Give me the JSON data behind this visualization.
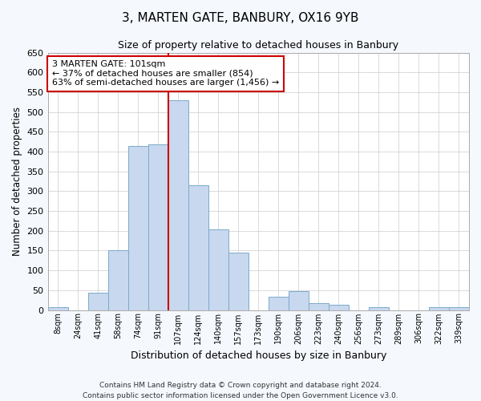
{
  "title": "3, MARTEN GATE, BANBURY, OX16 9YB",
  "subtitle": "Size of property relative to detached houses in Banbury",
  "xlabel": "Distribution of detached houses by size in Banbury",
  "ylabel": "Number of detached properties",
  "categories": [
    "8sqm",
    "24sqm",
    "41sqm",
    "58sqm",
    "74sqm",
    "91sqm",
    "107sqm",
    "124sqm",
    "140sqm",
    "157sqm",
    "173sqm",
    "190sqm",
    "206sqm",
    "223sqm",
    "240sqm",
    "256sqm",
    "273sqm",
    "289sqm",
    "306sqm",
    "322sqm",
    "339sqm"
  ],
  "values": [
    8,
    0,
    43,
    150,
    415,
    418,
    530,
    315,
    203,
    144,
    0,
    33,
    48,
    17,
    14,
    0,
    8,
    0,
    0,
    8,
    8
  ],
  "bar_color": "#c8d8ee",
  "bar_edge_color": "#7aaacc",
  "vline_x_index": 6,
  "vline_color": "#cc0000",
  "annotation_text": "3 MARTEN GATE: 101sqm\n← 37% of detached houses are smaller (854)\n63% of semi-detached houses are larger (1,456) →",
  "annotation_box_color": "#ffffff",
  "annotation_box_edge_color": "#cc0000",
  "ylim": [
    0,
    650
  ],
  "yticks": [
    0,
    50,
    100,
    150,
    200,
    250,
    300,
    350,
    400,
    450,
    500,
    550,
    600,
    650
  ],
  "grid_color": "#cccccc",
  "plot_bg_color": "#ffffff",
  "fig_bg_color": "#f5f8fd",
  "footer_line1": "Contains HM Land Registry data © Crown copyright and database right 2024.",
  "footer_line2": "Contains public sector information licensed under the Open Government Licence v3.0.",
  "figsize": [
    6.0,
    5.0
  ],
  "dpi": 100
}
